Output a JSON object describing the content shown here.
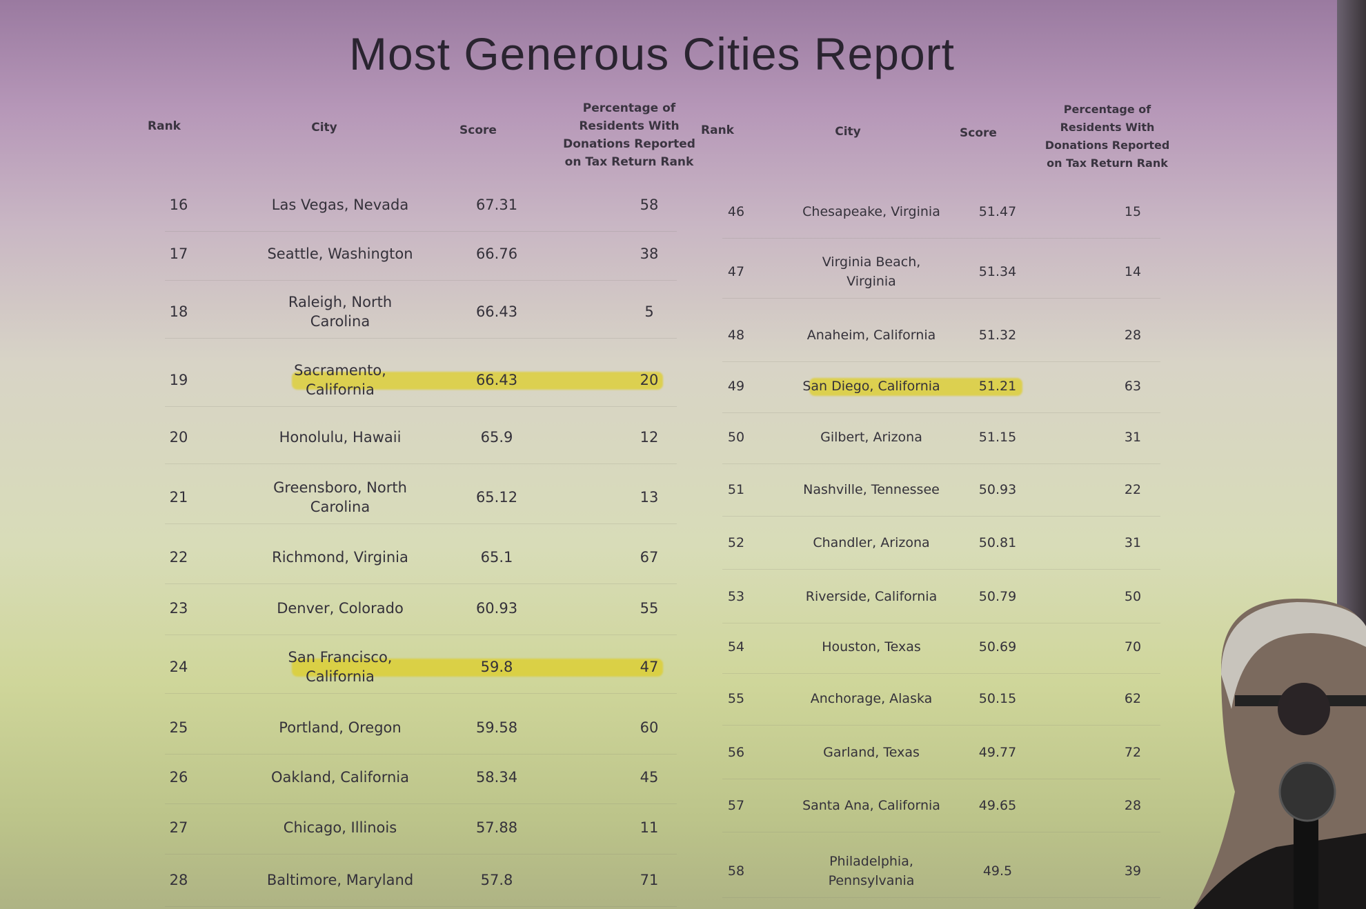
{
  "title": "Most Generous Cities Report",
  "headers": {
    "rank": "Rank",
    "city": "City",
    "score": "Score",
    "pct": "Percentage of\nResidents With\nDonations Reported\non Tax Return Rank"
  },
  "highlight_color": "#decd28",
  "left_rows": [
    {
      "rank": "16",
      "city": "Las Vegas, Nevada",
      "score": "67.31",
      "pct": "58"
    },
    {
      "rank": "17",
      "city": "Seattle, Washington",
      "score": "66.76",
      "pct": "38"
    },
    {
      "rank": "18",
      "city": "Raleigh, North\nCarolina",
      "score": "66.43",
      "pct": "5"
    },
    {
      "rank": "19",
      "city": "Sacramento,\nCalifornia",
      "score": "66.43",
      "pct": "20",
      "highlighted": true
    },
    {
      "rank": "20",
      "city": "Honolulu, Hawaii",
      "score": "65.9",
      "pct": "12"
    },
    {
      "rank": "21",
      "city": "Greensboro, North\nCarolina",
      "score": "65.12",
      "pct": "13"
    },
    {
      "rank": "22",
      "city": "Richmond, Virginia",
      "score": "65.1",
      "pct": "67"
    },
    {
      "rank": "23",
      "city": "Denver, Colorado",
      "score": "60.93",
      "pct": "55"
    },
    {
      "rank": "24",
      "city": "San Francisco,\nCalifornia",
      "score": "59.8",
      "pct": "47",
      "highlighted": true
    },
    {
      "rank": "25",
      "city": "Portland, Oregon",
      "score": "59.58",
      "pct": "60"
    },
    {
      "rank": "26",
      "city": "Oakland, California",
      "score": "58.34",
      "pct": "45"
    },
    {
      "rank": "27",
      "city": "Chicago, Illinois",
      "score": "57.88",
      "pct": "11"
    },
    {
      "rank": "28",
      "city": "Baltimore, Maryland",
      "score": "57.8",
      "pct": "71"
    }
  ],
  "right_rows": [
    {
      "rank": "46",
      "city": "Chesapeake, Virginia",
      "score": "51.47",
      "pct": "15"
    },
    {
      "rank": "47",
      "city": "Virginia Beach,\nVirginia",
      "score": "51.34",
      "pct": "14"
    },
    {
      "rank": "48",
      "city": "Anaheim, California",
      "score": "51.32",
      "pct": "28"
    },
    {
      "rank": "49",
      "city": "San Diego, California",
      "score": "51.21",
      "pct": "63",
      "highlighted": true
    },
    {
      "rank": "50",
      "city": "Gilbert, Arizona",
      "score": "51.15",
      "pct": "31"
    },
    {
      "rank": "51",
      "city": "Nashville, Tennessee",
      "score": "50.93",
      "pct": "22"
    },
    {
      "rank": "52",
      "city": "Chandler, Arizona",
      "score": "50.81",
      "pct": "31"
    },
    {
      "rank": "53",
      "city": "Riverside, California",
      "score": "50.79",
      "pct": "50"
    },
    {
      "rank": "54",
      "city": "Houston, Texas",
      "score": "50.69",
      "pct": "70"
    },
    {
      "rank": "55",
      "city": "Anchorage, Alaska",
      "score": "50.15",
      "pct": "62"
    },
    {
      "rank": "56",
      "city": "Garland, Texas",
      "score": "49.77",
      "pct": "72"
    },
    {
      "rank": "57",
      "city": "Santa Ana, California",
      "score": "49.65",
      "pct": "28"
    },
    {
      "rank": "58",
      "city": "Philadelphia,\nPennsylvania",
      "score": "49.5",
      "pct": "39"
    }
  ]
}
